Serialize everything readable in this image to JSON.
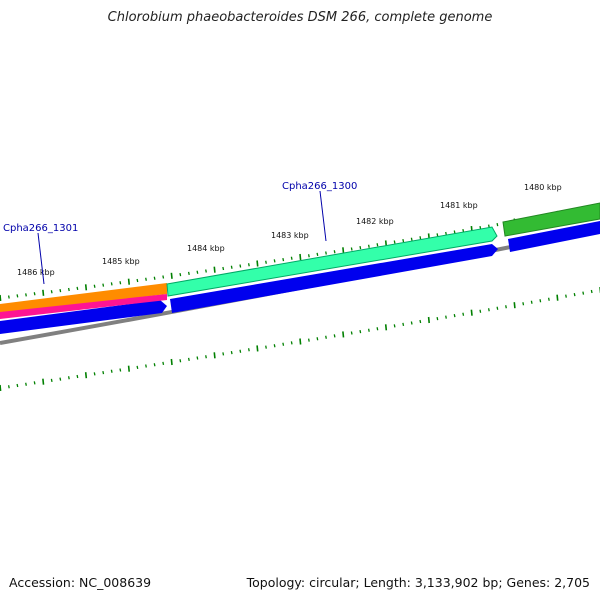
{
  "title": "Chlorobium phaeobacteroides DSM 266, complete genome",
  "footer": {
    "accession": "Accession: NC_008639",
    "topology": "Topology: circular; Length: 3,133,902 bp; Genes: 2,705"
  },
  "colors": {
    "backbone": "#808080",
    "ticks": "#008000",
    "reverse_cds": "#0000ee",
    "gene_1300": "#33ffaa",
    "gene_1300_edge": "#00cc77",
    "gene_1301": "#ff8c00",
    "gene_1301_rna": "#ff1493",
    "gene_right": "#33aa33",
    "label": "#0000aa"
  },
  "kbp_labels": [
    "1486 kbp",
    "1485 kbp",
    "1484 kbp",
    "1483 kbp",
    "1482 kbp",
    "1481 kbp",
    "1480 kbp"
  ],
  "gene_labels": [
    "Cpha266_1300",
    "Cpha266_1301"
  ]
}
